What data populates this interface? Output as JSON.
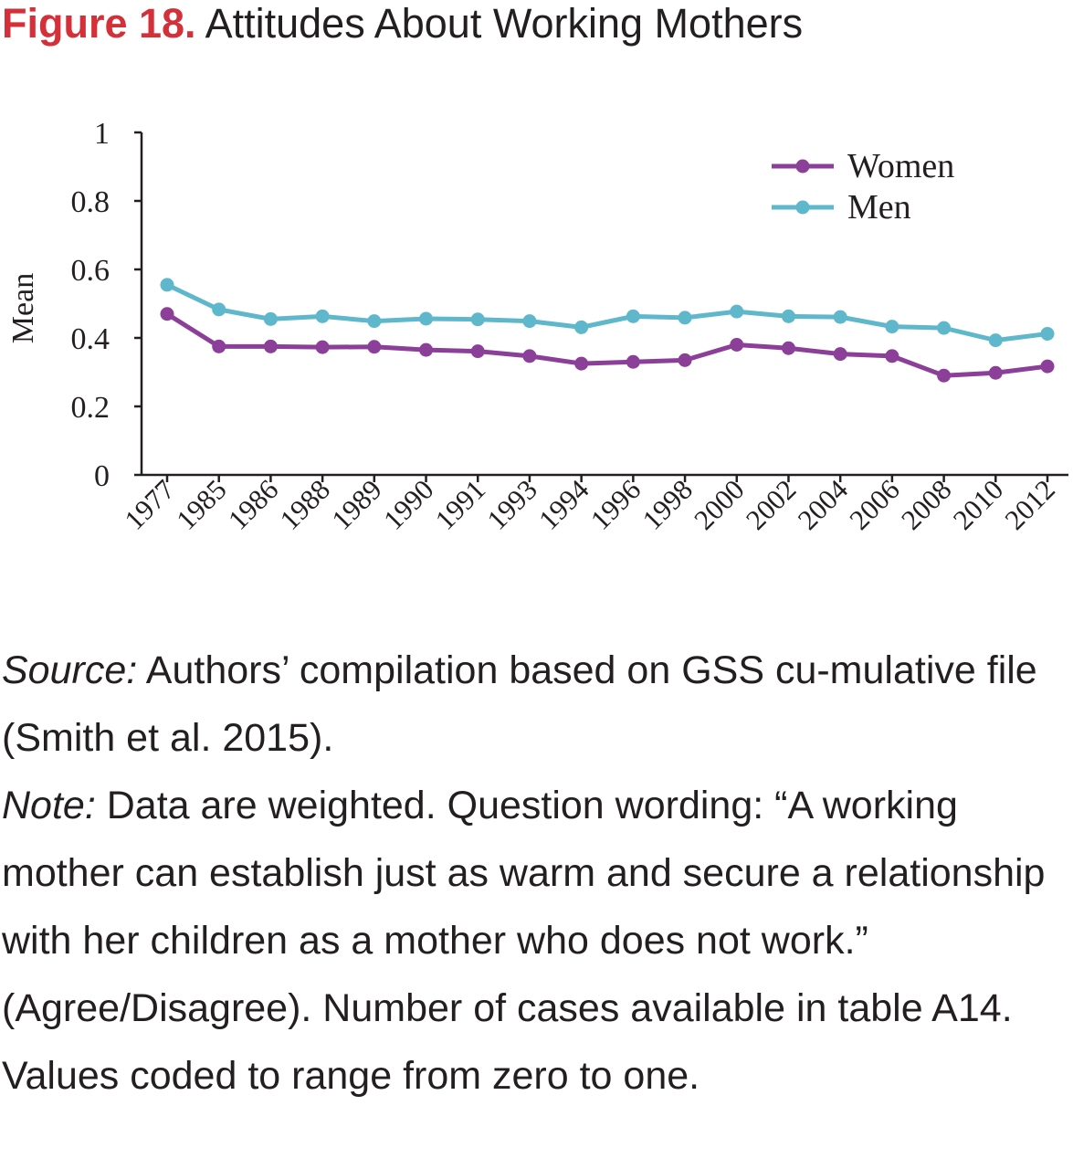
{
  "figure": {
    "label": "Figure 18.",
    "caption": "Attitudes About Working Mothers"
  },
  "chart_data": {
    "type": "line",
    "title": "",
    "xlabel": "",
    "ylabel": "Mean",
    "ylim": [
      0,
      1
    ],
    "yticks": [
      "0",
      "0.2",
      "0.4",
      "0.6",
      "0.8",
      "1"
    ],
    "categories": [
      "1977",
      "1985",
      "1986",
      "1988",
      "1989",
      "1990",
      "1991",
      "1993",
      "1994",
      "1996",
      "1998",
      "2000",
      "2002",
      "2004",
      "2006",
      "2008",
      "2010",
      "2012"
    ],
    "grid": false,
    "legend_position": "top-right",
    "series": [
      {
        "name": "Women",
        "color": "#8b3f99",
        "values": [
          0.47,
          0.375,
          0.375,
          0.373,
          0.374,
          0.365,
          0.361,
          0.347,
          0.325,
          0.33,
          0.335,
          0.38,
          0.37,
          0.353,
          0.347,
          0.29,
          0.298,
          0.317
        ]
      },
      {
        "name": "Men",
        "color": "#5fb7cb",
        "values": [
          0.555,
          0.483,
          0.455,
          0.463,
          0.449,
          0.456,
          0.454,
          0.449,
          0.431,
          0.463,
          0.459,
          0.477,
          0.463,
          0.461,
          0.433,
          0.429,
          0.393,
          0.412
        ]
      }
    ]
  },
  "notes": {
    "source_label": "Source:",
    "source_text": " Authors’ compilation based on GSS cu-mulative file (Smith et al. 2015).",
    "note_label": "Note:",
    "note_text": " Data are weighted. Question wording: “A working mother can establish just as warm and secure a relationship with her children as a mother who does not work.” (Agree/Disagree). Number of cases available in table A14. Values coded to range from zero to one."
  }
}
